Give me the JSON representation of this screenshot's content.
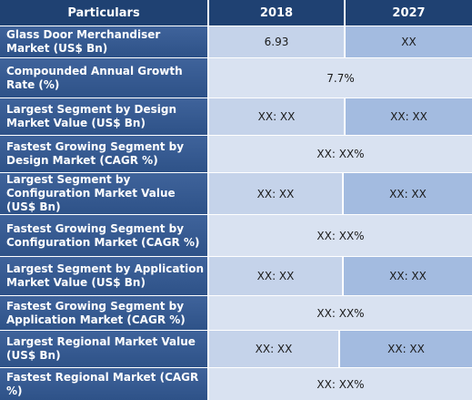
{
  "header": {
    "col0": "Particulars",
    "col1": "2018",
    "col2": "2027"
  },
  "rows": [
    {
      "label": "Glass Door Merchandiser Market (US$ Bn)",
      "v2018": "6.93",
      "v2027": "XX"
    },
    {
      "label": "Compounded Annual Growth Rate (%)",
      "merged": "7.7%"
    },
    {
      "label": "Largest Segment by Design Market Value (US$ Bn)",
      "v2018": "XX: XX",
      "v2027": "XX: XX"
    },
    {
      "label": "Fastest Growing Segment by Design Market (CAGR %)",
      "merged": "XX: XX%"
    },
    {
      "label": "Largest Segment by Configuration Market Value (US$ Bn)",
      "v2018": "XX: XX",
      "v2027": "XX: XX"
    },
    {
      "label": "Fastest Growing Segment by Configuration Market (CAGR %)",
      "merged": "XX: XX%"
    },
    {
      "label": "Largest Segment by Application Market Value (US$ Bn)",
      "v2018": "XX: XX",
      "v2027": "XX: XX"
    },
    {
      "label": "Fastest Growing Segment by Application Market (CAGR %)",
      "merged": "XX: XX%"
    },
    {
      "label": "Largest Regional Market Value (US$ Bn)",
      "v2018": "XX: XX",
      "v2027": "XX: XX"
    },
    {
      "label": "Fastest Regional Market (CAGR %)",
      "merged": "XX: XX%"
    }
  ]
}
